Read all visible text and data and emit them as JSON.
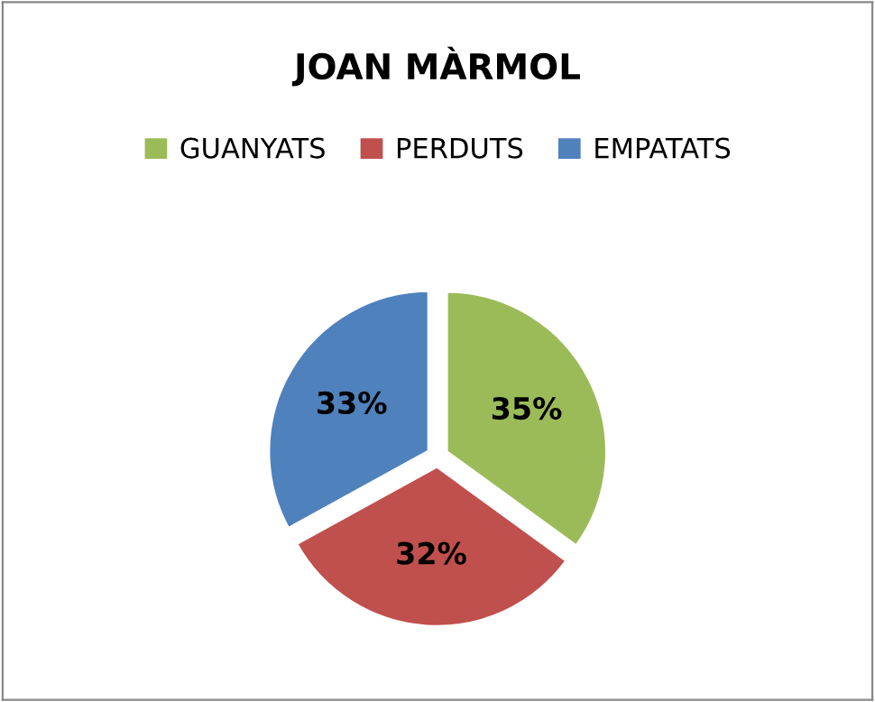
{
  "chart_data": {
    "type": "pie",
    "title": "JOAN MÀRMOL",
    "categories": [
      "GUANYATS",
      "PERDUTS",
      "EMPATATS"
    ],
    "values": [
      35,
      32,
      33
    ],
    "colors": [
      "#9bbb59",
      "#c0504d",
      "#4f81bd"
    ],
    "value_labels": [
      "35%",
      "32%",
      "33%"
    ],
    "legend": "top"
  }
}
